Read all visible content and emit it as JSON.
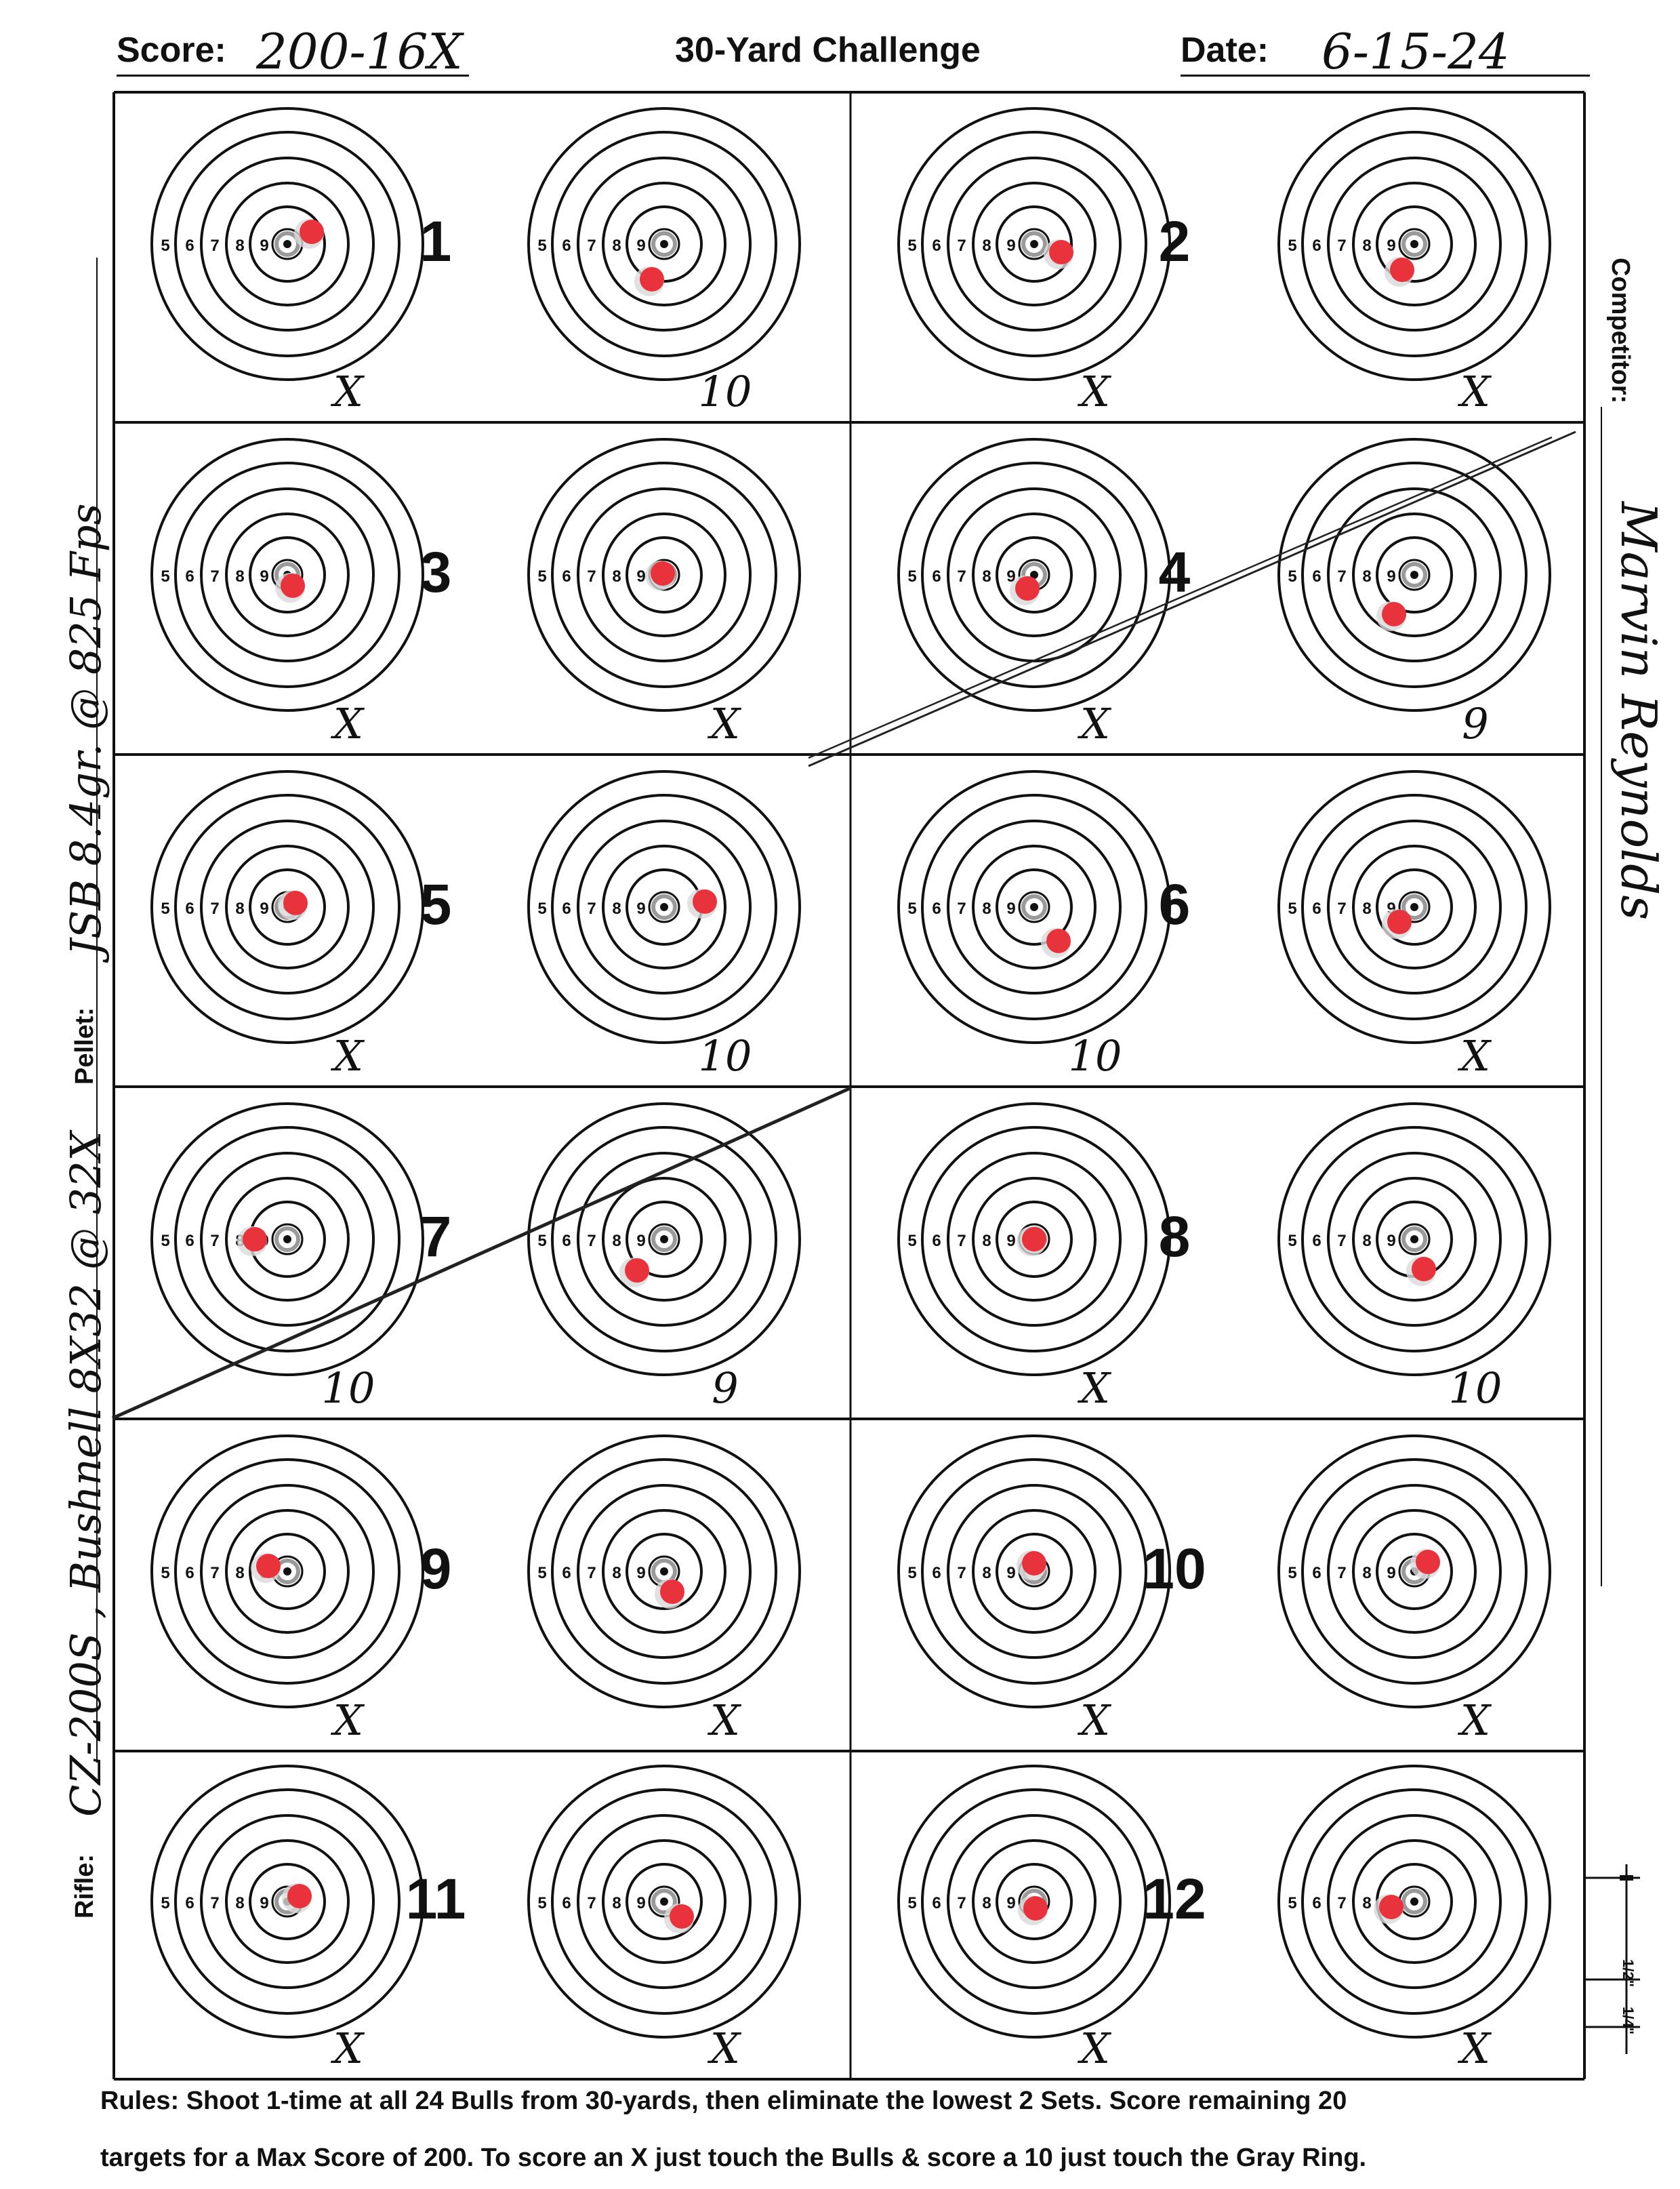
{
  "header": {
    "score_label": "Score:",
    "score_value": "200-16X",
    "title": "30-Yard Challenge",
    "date_label": "Date:",
    "date_value": "6-15-24"
  },
  "ring_labels": [
    "5",
    "6",
    "7",
    "8",
    "9"
  ],
  "sets": [
    {
      "number": "1",
      "left_score": "X",
      "right_score": "10"
    },
    {
      "number": "2",
      "left_score": "X",
      "right_score": "X"
    },
    {
      "number": "3",
      "left_score": "X",
      "right_score": "X"
    },
    {
      "number": "4",
      "left_score": "X",
      "right_score": "9"
    },
    {
      "number": "5",
      "left_score": "X",
      "right_score": "10"
    },
    {
      "number": "6",
      "left_score": "10",
      "right_score": "X"
    },
    {
      "number": "7",
      "left_score": "10",
      "right_score": "9"
    },
    {
      "number": "8",
      "left_score": "X",
      "right_score": "10"
    },
    {
      "number": "9",
      "left_score": "X",
      "right_score": "X"
    },
    {
      "number": "10",
      "left_score": "X",
      "right_score": "X"
    },
    {
      "number": "11",
      "left_score": "X",
      "right_score": "X"
    },
    {
      "number": "12",
      "left_score": "X",
      "right_score": "X"
    }
  ],
  "left_margin": {
    "rifle_label": "Rifle:",
    "rifle_value": "CZ-200S ,  Bushnell 8X32 @ 32X",
    "pellet_label": "Pellet:",
    "pellet_value": "JSB 8.4gr. @ 825 Fps"
  },
  "right_margin": {
    "competitor_label": "Competitor:",
    "competitor_value": "Marvin Reynolds"
  },
  "scale": {
    "half": "1/2\"",
    "quarter": "1/4\""
  },
  "rules": {
    "line1": "Rules: Shoot 1-time at all 24 Bulls from 30-yards, then eliminate the lowest 2 Sets. Score remaining 20",
    "line2": "targets for a Max Score of 200. To score an X just touch the Bulls & score a 10 just touch the Gray Ring."
  },
  "colors": {
    "ink": "#111111",
    "pellet_hole": "#e8323c",
    "torn_paper": "#d9d9d9",
    "gray_ring": "#9a9a9a"
  }
}
